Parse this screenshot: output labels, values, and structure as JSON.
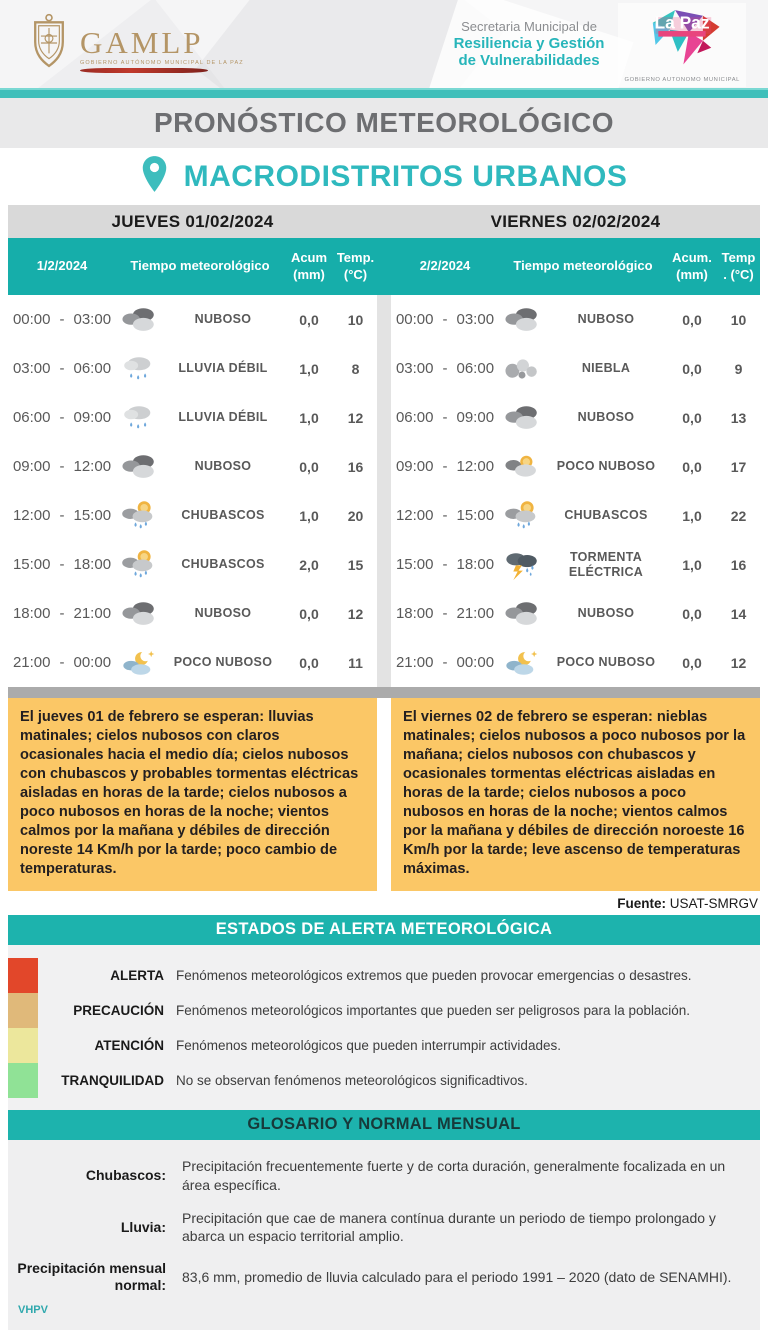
{
  "header": {
    "gamlp_logo_text": "GAMLP",
    "gamlp_logo_subtext": "GOBIERNO AUTÓNOMO MUNICIPAL DE LA PAZ",
    "secretariat_line1": "Secretaria Municipal de",
    "secretariat_line2": "Resiliencia y Gestión",
    "secretariat_line3": "de Vulnerabilidades",
    "lapaz_logo_text": "La Paz",
    "lapaz_logo_subtext": "GOBIERNO AUTONOMO MUNICIPAL"
  },
  "title": "PRONÓSTICO METEOROLÓGICO",
  "subtitle": "MACRODISTRITOS URBANOS",
  "forecast": {
    "days": [
      {
        "day_header": "JUEVES 01/02/2024",
        "columns": {
          "date": "1/2/2024",
          "weather": "Tiempo meteorológico",
          "acum": "Acum (mm)",
          "temp": "Temp. (°C)"
        },
        "rows": [
          {
            "time_start": "00:00",
            "time_end": "03:00",
            "icon": "clouds",
            "condition": "NUBOSO",
            "acum": "0,0",
            "temp": "10"
          },
          {
            "time_start": "03:00",
            "time_end": "06:00",
            "icon": "rain",
            "condition": "LLUVIA DÉBIL",
            "acum": "1,0",
            "temp": "8"
          },
          {
            "time_start": "06:00",
            "time_end": "09:00",
            "icon": "rain",
            "condition": "LLUVIA DÉBIL",
            "acum": "1,0",
            "temp": "12"
          },
          {
            "time_start": "09:00",
            "time_end": "12:00",
            "icon": "clouds",
            "condition": "NUBOSO",
            "acum": "0,0",
            "temp": "16"
          },
          {
            "time_start": "12:00",
            "time_end": "15:00",
            "icon": "sun-rain",
            "condition": "CHUBASCOS",
            "acum": "1,0",
            "temp": "20"
          },
          {
            "time_start": "15:00",
            "time_end": "18:00",
            "icon": "sun-rain",
            "condition": "CHUBASCOS",
            "acum": "2,0",
            "temp": "15"
          },
          {
            "time_start": "18:00",
            "time_end": "21:00",
            "icon": "clouds",
            "condition": "NUBOSO",
            "acum": "0,0",
            "temp": "12"
          },
          {
            "time_start": "21:00",
            "time_end": "00:00",
            "icon": "moon-cloud",
            "condition": "POCO NUBOSO",
            "acum": "0,0",
            "temp": "11"
          }
        ],
        "summary": "El jueves 01 de febrero se esperan: lluvias matinales; cielos nubosos con claros ocasionales hacia el medio día; cielos nubosos con chubascos y probables tormentas eléctricas aisladas en horas de la tarde; cielos nubosos a poco nubosos en horas de la noche; vientos calmos por la mañana y débiles de dirección noreste 14 Km/h por la tarde; poco cambio de temperaturas."
      },
      {
        "day_header": "VIERNES 02/02/2024",
        "columns": {
          "date": "2/2/2024",
          "weather": "Tiempo meteorológico",
          "acum": "Acum. (mm)",
          "temp": "Temp . (°C)"
        },
        "rows": [
          {
            "time_start": "00:00",
            "time_end": "03:00",
            "icon": "clouds",
            "condition": "NUBOSO",
            "acum": "0,0",
            "temp": "10"
          },
          {
            "time_start": "03:00",
            "time_end": "06:00",
            "icon": "fog",
            "condition": "NIEBLA",
            "acum": "0,0",
            "temp": "9"
          },
          {
            "time_start": "06:00",
            "time_end": "09:00",
            "icon": "clouds",
            "condition": "NUBOSO",
            "acum": "0,0",
            "temp": "13"
          },
          {
            "time_start": "09:00",
            "time_end": "12:00",
            "icon": "sun-cloud",
            "condition": "POCO NUBOSO",
            "acum": "0,0",
            "temp": "17"
          },
          {
            "time_start": "12:00",
            "time_end": "15:00",
            "icon": "sun-rain",
            "condition": "CHUBASCOS",
            "acum": "1,0",
            "temp": "22"
          },
          {
            "time_start": "15:00",
            "time_end": "18:00",
            "icon": "storm",
            "condition": "TORMENTA ELÉCTRICA",
            "acum": "1,0",
            "temp": "16"
          },
          {
            "time_start": "18:00",
            "time_end": "21:00",
            "icon": "clouds",
            "condition": "NUBOSO",
            "acum": "0,0",
            "temp": "14"
          },
          {
            "time_start": "21:00",
            "time_end": "00:00",
            "icon": "moon-cloud",
            "condition": "POCO NUBOSO",
            "acum": "0,0",
            "temp": "12"
          }
        ],
        "summary": "El viernes 02 de febrero se esperan: nieblas matinales; cielos nubosos a poco nubosos por la mañana; cielos nubosos con chubascos y ocasionales tormentas eléctricas aisladas en horas de la tarde; cielos nubosos a poco nubosos en horas de la noche; vientos calmos por la mañana y débiles de dirección noroeste 16 Km/h por la tarde; leve ascenso de temperaturas máximas."
      }
    ]
  },
  "source": {
    "label": "Fuente:",
    "value": " USAT-SMRGV"
  },
  "alerts": {
    "title": "ESTADOS DE ALERTA METEOROLÓGICA",
    "items": [
      {
        "label": "ALERTA",
        "color": "#e2472a",
        "description": "Fenómenos meteorológicos extremos que pueden provocar emergencias o desastres."
      },
      {
        "label": "PRECAUCIÓN",
        "color": "#e0b97a",
        "description": "Fenómenos meteorológicos importantes que pueden ser peligrosos para la población."
      },
      {
        "label": "ATENCIÓN",
        "color": "#ece79c",
        "description": "Fenómenos meteorológicos que pueden interrumpir actividades."
      },
      {
        "label": "TRANQUILIDAD",
        "color": "#90e296",
        "description": "No se observan fenómenos meteorológicos significadtivos."
      }
    ]
  },
  "glossary": {
    "title": "GLOSARIO Y NORMAL MENSUAL",
    "items": [
      {
        "term": "Chubascos:",
        "definition": "Precipitación frecuentemente fuerte y de corta duración, generalmente focalizada en un área específica."
      },
      {
        "term": "Lluvia:",
        "definition": "Precipitación que cae de manera contínua durante un periodo de tiempo prolongado y abarca un espacio territorial amplio."
      },
      {
        "term": "Precipitación mensual normal:",
        "definition": "83,6 mm, promedio de lluvia calculado para el periodo 1991 – 2020 (dato de SENAMHI)."
      }
    ]
  },
  "footer": {
    "initials": "VHPV"
  },
  "colors": {
    "teal_accent": "#3fbfba",
    "table_header_teal": "#16aeaa",
    "section_band_teal": "#1db3ad",
    "subtitle_teal": "#2fb9be",
    "summary_bg": "#fbc766",
    "day_band_gray": "#d9d9d9",
    "alerta": "#e2472a",
    "precaucion": "#e0b97a",
    "atencion": "#ece79c",
    "tranquilidad": "#90e296"
  }
}
